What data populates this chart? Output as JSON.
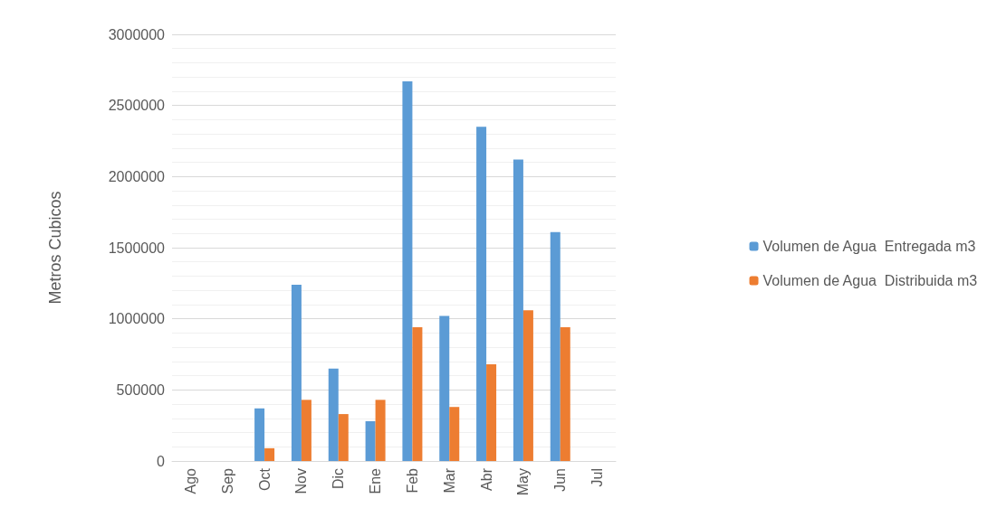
{
  "chart_data": {
    "type": "bar",
    "ylabel": "Metros Cubicos",
    "categories": [
      "Ago",
      "Sep",
      "Oct",
      "Nov",
      "Dic",
      "Ene",
      "Feb",
      "Mar",
      "Abr",
      "May",
      "Jun",
      "Jul"
    ],
    "series": [
      {
        "name": "Volumen de Agua  Entregada m3",
        "color": "#5b9bd5",
        "values": [
          null,
          null,
          370000,
          1240000,
          650000,
          280000,
          2670000,
          1020000,
          2350000,
          2120000,
          1610000,
          null
        ]
      },
      {
        "name": "Volumen de Agua  Distribuida m3",
        "color": "#ed7d31",
        "values": [
          null,
          null,
          90000,
          430000,
          330000,
          430000,
          940000,
          380000,
          680000,
          1060000,
          940000,
          null
        ]
      }
    ],
    "ylim": [
      0,
      3000000
    ],
    "yticks": [
      0,
      500000,
      1000000,
      1500000,
      2000000,
      2500000,
      3000000
    ],
    "grid": true,
    "legend": "right"
  }
}
